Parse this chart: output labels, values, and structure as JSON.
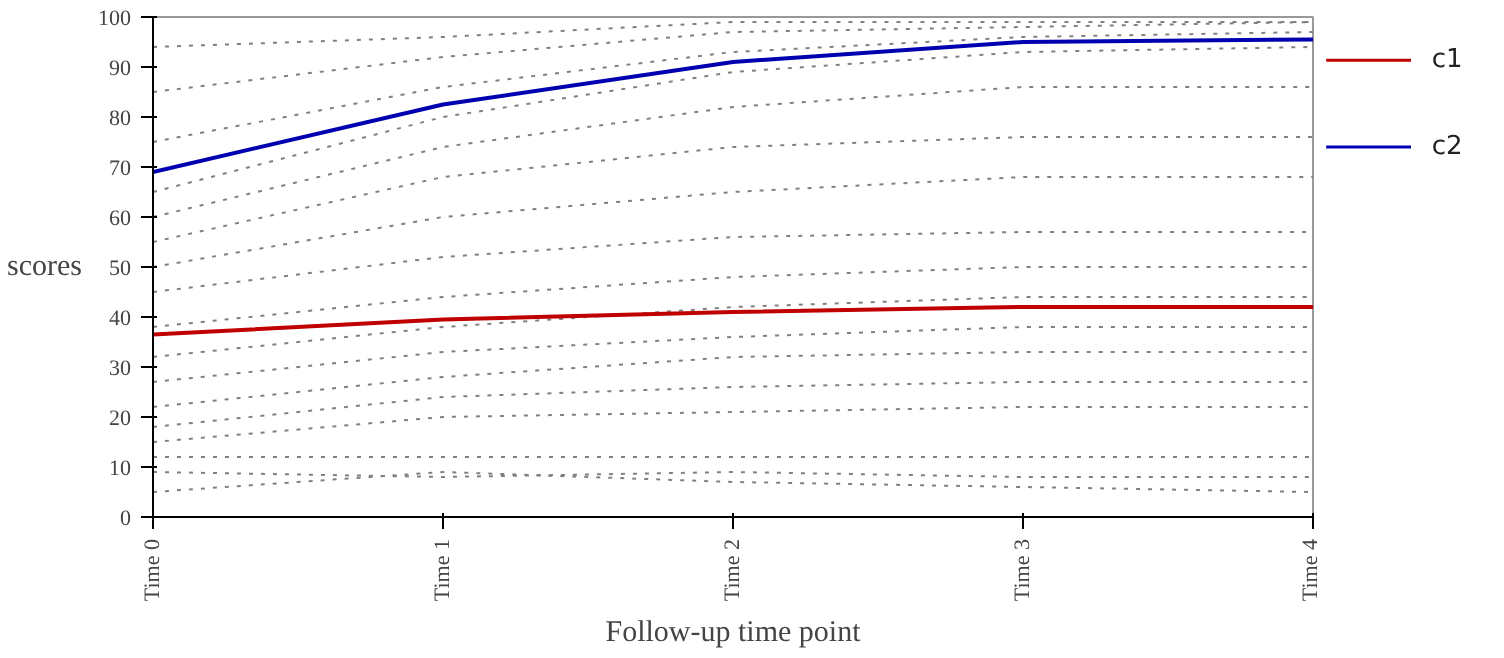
{
  "chart_data": {
    "type": "line",
    "xlabel": "Follow-up time point",
    "ylabel": "scores",
    "categories": [
      "Time 0",
      "Time 1",
      "Time 2",
      "Time 3",
      "Time 4"
    ],
    "ylim": [
      0,
      100
    ],
    "yticks": [
      0,
      10,
      20,
      30,
      40,
      50,
      60,
      70,
      80,
      90,
      100
    ],
    "grid": false,
    "legend": "right",
    "marker": "none",
    "series": [
      {
        "color": "#808080",
        "line_style": "dotted",
        "values": [
          5,
          9,
          7,
          6,
          5
        ]
      },
      {
        "color": "#808080",
        "line_style": "dotted",
        "values": [
          9,
          8,
          9,
          8,
          8
        ]
      },
      {
        "color": "#808080",
        "line_style": "dotted",
        "values": [
          12,
          12,
          12,
          12,
          12
        ]
      },
      {
        "color": "#808080",
        "line_style": "dotted",
        "values": [
          15,
          20,
          21,
          22,
          22
        ]
      },
      {
        "color": "#808080",
        "line_style": "dotted",
        "values": [
          18,
          24,
          26,
          27,
          27
        ]
      },
      {
        "color": "#808080",
        "line_style": "dotted",
        "values": [
          22,
          28,
          32,
          33,
          33
        ]
      },
      {
        "color": "#808080",
        "line_style": "dotted",
        "values": [
          27,
          33,
          36,
          38,
          38
        ]
      },
      {
        "color": "#808080",
        "line_style": "dotted",
        "values": [
          32,
          38,
          42,
          44,
          44
        ]
      },
      {
        "color": "#808080",
        "line_style": "dotted",
        "values": [
          38,
          44,
          48,
          50,
          50
        ]
      },
      {
        "color": "#808080",
        "line_style": "dotted",
        "values": [
          45,
          52,
          56,
          57,
          57
        ]
      },
      {
        "color": "#808080",
        "line_style": "dotted",
        "values": [
          50,
          60,
          65,
          68,
          68
        ]
      },
      {
        "color": "#808080",
        "line_style": "dotted",
        "values": [
          55,
          68,
          74,
          76,
          76
        ]
      },
      {
        "color": "#808080",
        "line_style": "dotted",
        "values": [
          60,
          74,
          82,
          86,
          86
        ]
      },
      {
        "color": "#808080",
        "line_style": "dotted",
        "values": [
          65,
          80,
          89,
          93,
          94
        ]
      },
      {
        "color": "#808080",
        "line_style": "dotted",
        "values": [
          75,
          86,
          93,
          96,
          97
        ]
      },
      {
        "color": "#808080",
        "line_style": "dotted",
        "values": [
          85,
          92,
          97,
          98,
          99
        ]
      },
      {
        "color": "#808080",
        "line_style": "dotted",
        "values": [
          94,
          96,
          99,
          99,
          99
        ]
      },
      {
        "name": "c1",
        "color": "#c00000",
        "line_style": "solid",
        "values": [
          36.5,
          39.5,
          41,
          42,
          42
        ]
      },
      {
        "name": "c2",
        "color": "#0000b0",
        "line_style": "solid",
        "values": [
          69,
          82.5,
          91,
          95,
          95.5
        ]
      }
    ]
  }
}
